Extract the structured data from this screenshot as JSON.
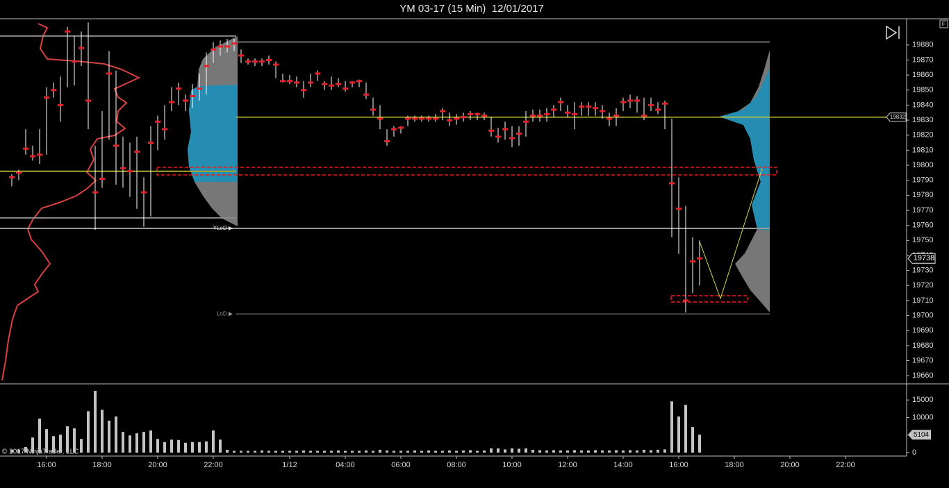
{
  "chart_data": [
    {
      "type": "ohlc",
      "title": "YM 03-17 (15 Min)  12/01/2017",
      "high": [
        19794,
        19797,
        19824,
        19813,
        19824,
        19852,
        19855,
        19859,
        19892,
        19886,
        19889,
        19895,
        19813,
        19836,
        19876,
        19863,
        19819,
        19815,
        19819,
        19792,
        19826,
        19833,
        19840,
        19852,
        19855,
        19847,
        19854,
        19861,
        19875,
        19882,
        19883,
        19884,
        19884,
        19877,
        19871,
        19871,
        19871,
        19873,
        19869,
        19861,
        19860,
        19859,
        19856,
        19861,
        19863,
        19856,
        19859,
        19858,
        19856,
        19856,
        19857,
        19855,
        19845,
        19840,
        19824,
        19826,
        19826,
        19833,
        19833,
        19833,
        19833,
        19834,
        19838,
        19835,
        19834,
        19835,
        19836,
        19835,
        19835,
        19832,
        19825,
        19829,
        19826,
        19826,
        19836,
        19837,
        19837,
        19838,
        19840,
        19845,
        19840,
        19842,
        19842,
        19842,
        19842,
        19840,
        19835,
        19838,
        19845,
        19847,
        19846,
        19845,
        19845,
        19842,
        19843,
        19831,
        19792,
        19773,
        19752,
        19750,
        null,
        null,
        null,
        null,
        null,
        null,
        null,
        null,
        null,
        null,
        null,
        null,
        null,
        null,
        null,
        null,
        null,
        null,
        null,
        null,
        null
      ],
      "low": [
        19786,
        19790,
        19807,
        19803,
        19801,
        19807,
        19845,
        19829,
        19852,
        19853,
        19866,
        19824,
        19757,
        19785,
        19817,
        19787,
        19785,
        19779,
        19771,
        19759,
        19766,
        19810,
        19817,
        19836,
        19840,
        19836,
        19838,
        19843,
        19847,
        19868,
        19873,
        19875,
        19876,
        19868,
        19867,
        19866,
        19866,
        19867,
        19858,
        19855,
        19854,
        19852,
        19845,
        19852,
        19856,
        19850,
        19850,
        19852,
        19849,
        19852,
        19852,
        19844,
        19833,
        19824,
        19813,
        19819,
        19821,
        19826,
        19829,
        19829,
        19829,
        19829,
        19830,
        19826,
        19827,
        19829,
        19830,
        19830,
        19830,
        19819,
        19815,
        19817,
        19812,
        19813,
        19819,
        19829,
        19829,
        19829,
        19832,
        19836,
        19832,
        19824,
        19833,
        19833,
        19833,
        19831,
        19826,
        19826,
        19836,
        19838,
        19835,
        19830,
        19836,
        19834,
        19824,
        19752,
        19741,
        19702,
        19715,
        19720,
        null,
        null,
        null,
        null,
        null,
        null,
        null,
        null,
        null,
        null,
        null,
        null,
        null,
        null,
        null,
        null,
        null,
        null,
        null,
        null,
        null
      ],
      "close": [
        19792,
        19795,
        19811,
        19806,
        19807,
        19845,
        19850,
        19840,
        19889,
        19869,
        19878,
        19843,
        19782,
        19791,
        19861,
        19813,
        19798,
        19796,
        19809,
        19782,
        19815,
        19829,
        19824,
        19842,
        19851,
        19843,
        19846,
        19851,
        19866,
        19877,
        19879,
        19879,
        19881,
        19873,
        19869,
        19869,
        19869,
        19870,
        19867,
        19856,
        19856,
        19855,
        19850,
        19855,
        19861,
        19854,
        19853,
        19854,
        19851,
        19855,
        19856,
        19847,
        19837,
        19831,
        19816,
        19824,
        19825,
        19831,
        19831,
        19831,
        19831,
        19831,
        19836,
        19830,
        19831,
        19832,
        19834,
        19834,
        19833,
        19823,
        19819,
        19824,
        19818,
        19821,
        19829,
        19833,
        19833,
        19834,
        19837,
        19842,
        19835,
        19834,
        19839,
        19839,
        19838,
        19836,
        19831,
        19833,
        19842,
        19843,
        19843,
        19833,
        19840,
        19837,
        19841,
        19788,
        19771,
        19710,
        19736,
        19738,
        null,
        null,
        null,
        null,
        null,
        null,
        null,
        null,
        null,
        null,
        null,
        null,
        null,
        null,
        null,
        null,
        null,
        null,
        null,
        null,
        null
      ],
      "bar_color": "#ffffff",
      "close_color": "#e8202a",
      "ylim": [
        19655,
        19897
      ],
      "yticks": [
        19660,
        19670,
        19680,
        19690,
        19700,
        19710,
        19720,
        19730,
        19740,
        19750,
        19760,
        19770,
        19780,
        19790,
        19800,
        19810,
        19820,
        19830,
        19840,
        19850,
        19860,
        19870,
        19880
      ],
      "levels": [
        {
          "value": 19882,
          "color": "#6e6e6e"
        },
        {
          "label": "YLoD ▶",
          "value": 19758,
          "color": "#9a9a9a"
        },
        {
          "label": "LoD ▶",
          "value": 19701,
          "color": "#4e4e4e"
        },
        {
          "value": 19886,
          "color": "#8a8a8a"
        },
        {
          "value": 19765,
          "color": "#8a8a8a"
        },
        {
          "value": 19796,
          "color": "#a8a830"
        }
      ],
      "poc": 19832,
      "poc_color": "#c8c832",
      "last_price": 19738
    },
    {
      "type": "bar",
      "categories": [
        null,
        null,
        null,
        null,
        null,
        "16:00",
        null,
        null,
        null,
        null,
        null,
        null,
        null,
        "18:00",
        null,
        null,
        null,
        null,
        null,
        null,
        null,
        "20:00",
        null,
        null,
        null,
        null,
        null,
        null,
        null,
        "22:00",
        null,
        null,
        null,
        null,
        null,
        null,
        null,
        null,
        null,
        null,
        "1/12",
        null,
        null,
        null,
        null,
        null,
        null,
        null,
        "04:00",
        null,
        null,
        null,
        null,
        null,
        null,
        null,
        "06:00",
        null,
        null,
        null,
        null,
        null,
        null,
        null,
        "08:00",
        null,
        null,
        null,
        null,
        null,
        null,
        null,
        "10:00",
        null,
        null,
        null,
        null,
        null,
        null,
        null,
        "12:00",
        null,
        null,
        null,
        null,
        null,
        null,
        null,
        "14:00",
        null,
        null,
        null,
        null,
        null,
        null,
        null,
        "16:00",
        null,
        null,
        null,
        null,
        null,
        null,
        null,
        "18:00",
        null,
        null,
        null,
        null,
        null,
        null,
        null,
        "20:00",
        null,
        null,
        null,
        null,
        null,
        null,
        null,
        "22:00"
      ],
      "values": [
        800,
        800,
        1600,
        4300,
        9700,
        6700,
        4700,
        5100,
        7500,
        6900,
        3900,
        11800,
        17600,
        12200,
        9100,
        10300,
        5900,
        4900,
        5500,
        5900,
        6300,
        3900,
        3000,
        3700,
        3600,
        2800,
        3000,
        3000,
        3200,
        6300,
        3700,
        800,
        500,
        500,
        500,
        500,
        600,
        500,
        500,
        500,
        500,
        500,
        600,
        500,
        500,
        500,
        500,
        600,
        500,
        500,
        500,
        600,
        500,
        800,
        600,
        500,
        500,
        500,
        600,
        500,
        600,
        500,
        500,
        600,
        500,
        600,
        700,
        500,
        600,
        1200,
        1200,
        900,
        1200,
        1100,
        1200,
        800,
        700,
        600,
        700,
        600,
        600,
        700,
        600,
        600,
        700,
        600,
        600,
        700,
        600,
        700,
        600,
        800,
        700,
        800,
        900,
        14600,
        10300,
        13600,
        7300,
        5104,
        null,
        null,
        null,
        null,
        null,
        null,
        null,
        null,
        null,
        null,
        null,
        null,
        null,
        null,
        null,
        null,
        null,
        null,
        null,
        null,
        null
      ],
      "color": "#c4c4c4",
      "ylim": [
        0,
        19000
      ],
      "yticks": [
        0,
        5000,
        10000,
        15000
      ],
      "copyright": "© 2017 NinjaTrader, LLC",
      "button": "F"
    }
  ]
}
